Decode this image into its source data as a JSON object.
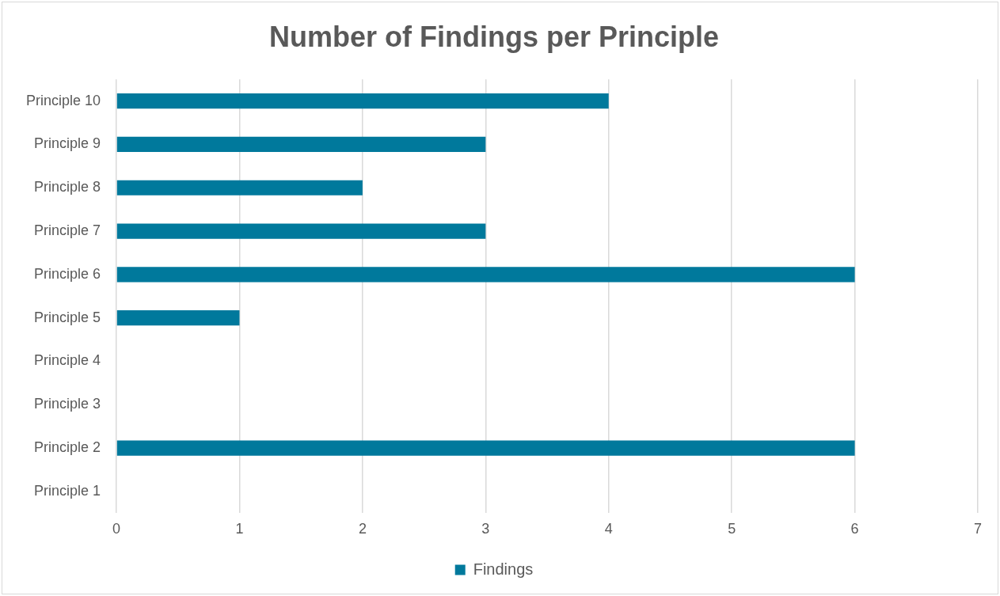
{
  "chart_data": {
    "type": "bar",
    "orientation": "horizontal",
    "title": "Number of Findings per Principle",
    "categories": [
      "Principle 10",
      "Principle 9",
      "Principle 8",
      "Principle 7",
      "Principle 6",
      "Principle 5",
      "Principle 4",
      "Principle 3",
      "Principle 2",
      "Principle 1"
    ],
    "series": [
      {
        "name": "Findings",
        "color": "#00799c",
        "values": [
          4,
          3,
          2,
          3,
          6,
          1,
          0,
          0,
          6,
          0
        ]
      }
    ],
    "xlim": [
      0,
      7
    ],
    "xticks": [
      0,
      1,
      2,
      3,
      4,
      5,
      6,
      7
    ],
    "grid": "x",
    "legend": "bottom"
  }
}
